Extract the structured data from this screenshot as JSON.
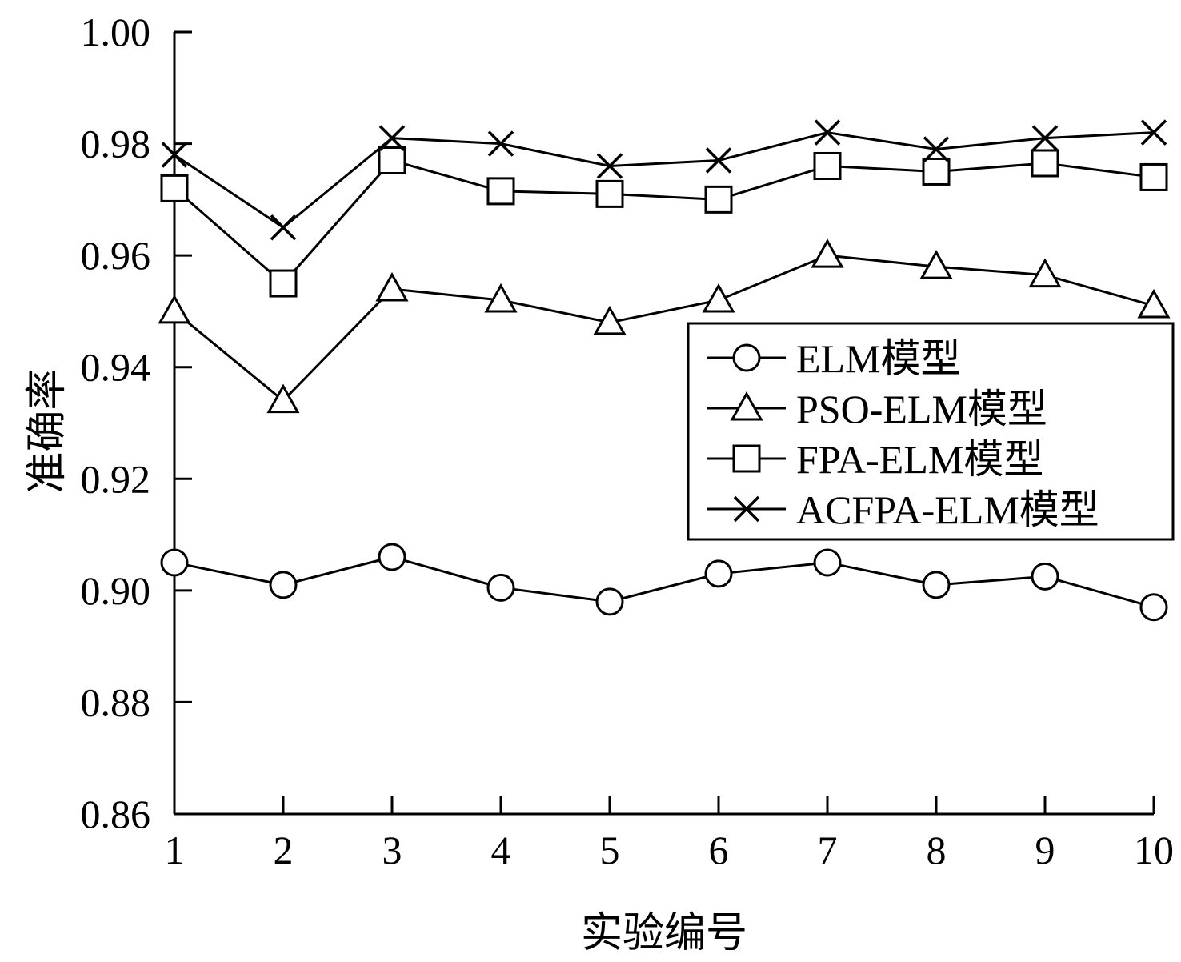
{
  "chart_data": {
    "type": "line",
    "xlabel": "实验编号",
    "ylabel": "准确率",
    "x": [
      1,
      2,
      3,
      4,
      5,
      6,
      7,
      8,
      9,
      10
    ],
    "xticks": [
      "1",
      "2",
      "3",
      "4",
      "5",
      "6",
      "7",
      "8",
      "9",
      "10"
    ],
    "yticks": [
      "0.86",
      "0.88",
      "0.90",
      "0.92",
      "0.94",
      "0.96",
      "0.98",
      "1.00"
    ],
    "ylim": [
      0.86,
      1.0
    ],
    "grid": false,
    "legend_position": "right",
    "series": [
      {
        "name": "ELM模型",
        "marker": "circle",
        "values": [
          0.905,
          0.901,
          0.906,
          0.9005,
          0.898,
          0.903,
          0.905,
          0.901,
          0.9025,
          0.897
        ]
      },
      {
        "name": "PSO-ELM模型",
        "marker": "triangle",
        "values": [
          0.95,
          0.934,
          0.954,
          0.952,
          0.948,
          0.952,
          0.96,
          0.958,
          0.9565,
          0.951
        ]
      },
      {
        "name": "FPA-ELM模型",
        "marker": "square",
        "values": [
          0.972,
          0.955,
          0.977,
          0.9715,
          0.971,
          0.97,
          0.976,
          0.975,
          0.9765,
          0.974
        ]
      },
      {
        "name": "ACFPA-ELM模型",
        "marker": "x",
        "values": [
          0.978,
          0.965,
          0.981,
          0.98,
          0.976,
          0.977,
          0.982,
          0.979,
          0.981,
          0.982
        ]
      }
    ]
  }
}
